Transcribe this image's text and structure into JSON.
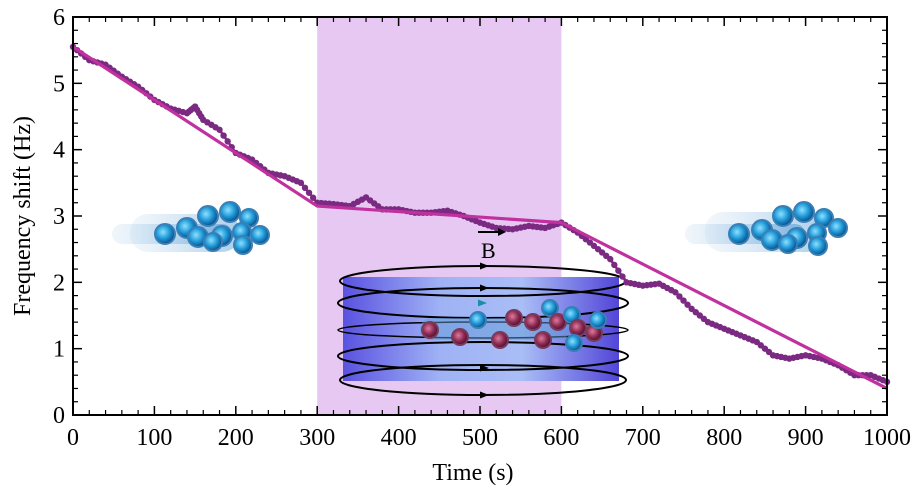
{
  "chart_data": {
    "type": "line",
    "xlabel": "Time (s)",
    "ylabel": "Frequency shift (Hz)",
    "xlim": [
      0,
      1000
    ],
    "ylim": [
      0,
      6
    ],
    "xticks": [
      0,
      100,
      200,
      300,
      400,
      500,
      600,
      700,
      800,
      900,
      1000
    ],
    "yticks": [
      0,
      1,
      2,
      3,
      4,
      5,
      6
    ],
    "xtick_labels": [
      "0",
      "100",
      "200",
      "300",
      "400",
      "500",
      "600",
      "700",
      "800",
      "900",
      "1000"
    ],
    "ytick_labels": [
      "0",
      "1",
      "2",
      "3",
      "4",
      "5",
      "6"
    ],
    "grid": false,
    "highlight_region": {
      "x": [
        300,
        600
      ],
      "color": "#e6c8f2"
    },
    "annotation": "B",
    "series": [
      {
        "kind": "measured",
        "color": "#7b2a82",
        "x": [
          0,
          20,
          40,
          60,
          80,
          100,
          120,
          140,
          150,
          160,
          180,
          200,
          220,
          240,
          260,
          280,
          300,
          320,
          340,
          360,
          380,
          400,
          420,
          440,
          460,
          480,
          500,
          520,
          540,
          560,
          580,
          600,
          620,
          640,
          660,
          680,
          700,
          720,
          740,
          760,
          780,
          800,
          820,
          840,
          860,
          880,
          900,
          920,
          940,
          960,
          980,
          1000
        ],
        "y": [
          5.55,
          5.35,
          5.28,
          5.1,
          4.95,
          4.75,
          4.62,
          4.55,
          4.65,
          4.45,
          4.3,
          3.95,
          3.85,
          3.65,
          3.6,
          3.5,
          3.2,
          3.18,
          3.15,
          3.28,
          3.1,
          3.1,
          3.05,
          3.05,
          3.08,
          3.0,
          2.9,
          2.82,
          2.8,
          2.85,
          2.82,
          2.9,
          2.75,
          2.55,
          2.35,
          2.0,
          1.95,
          1.98,
          1.85,
          1.6,
          1.4,
          1.3,
          1.2,
          1.1,
          0.9,
          0.85,
          0.9,
          0.85,
          0.75,
          0.6,
          0.6,
          0.5
        ]
      },
      {
        "kind": "fit",
        "color": "#c0309e",
        "x": [
          0,
          300,
          600,
          1000
        ],
        "y": [
          5.55,
          3.15,
          2.9,
          0.4
        ]
      }
    ]
  }
}
